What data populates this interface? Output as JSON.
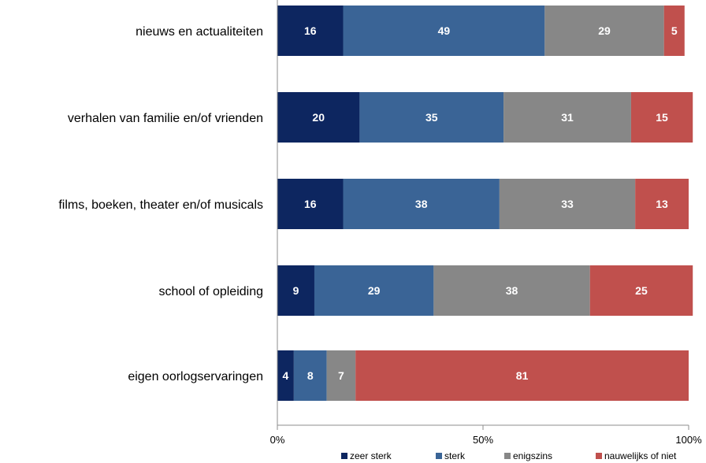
{
  "chart_data": {
    "type": "bar",
    "orientation": "horizontal",
    "stacked": "100%",
    "categories": [
      "nieuws en actualiteiten",
      "verhalen van familie en/of vrienden",
      "films, boeken, theater en/of musicals",
      "school of opleiding",
      "eigen oorlogservaringen"
    ],
    "series": [
      {
        "name": "zeer sterk",
        "color": "#0d2660",
        "values": [
          16,
          20,
          16,
          9,
          4
        ]
      },
      {
        "name": "sterk",
        "color": "#3a6496",
        "values": [
          49,
          35,
          38,
          29,
          8
        ]
      },
      {
        "name": "enigszins",
        "color": "#878787",
        "values": [
          29,
          31,
          33,
          38,
          7
        ]
      },
      {
        "name": "nauwelijks of niet",
        "color": "#c0504d",
        "values": [
          5,
          15,
          13,
          25,
          81
        ]
      }
    ],
    "xticks": [
      "0%",
      "50%",
      "100%"
    ],
    "xlim": [
      0,
      100
    ],
    "grid": false,
    "legend_position": "bottom"
  }
}
